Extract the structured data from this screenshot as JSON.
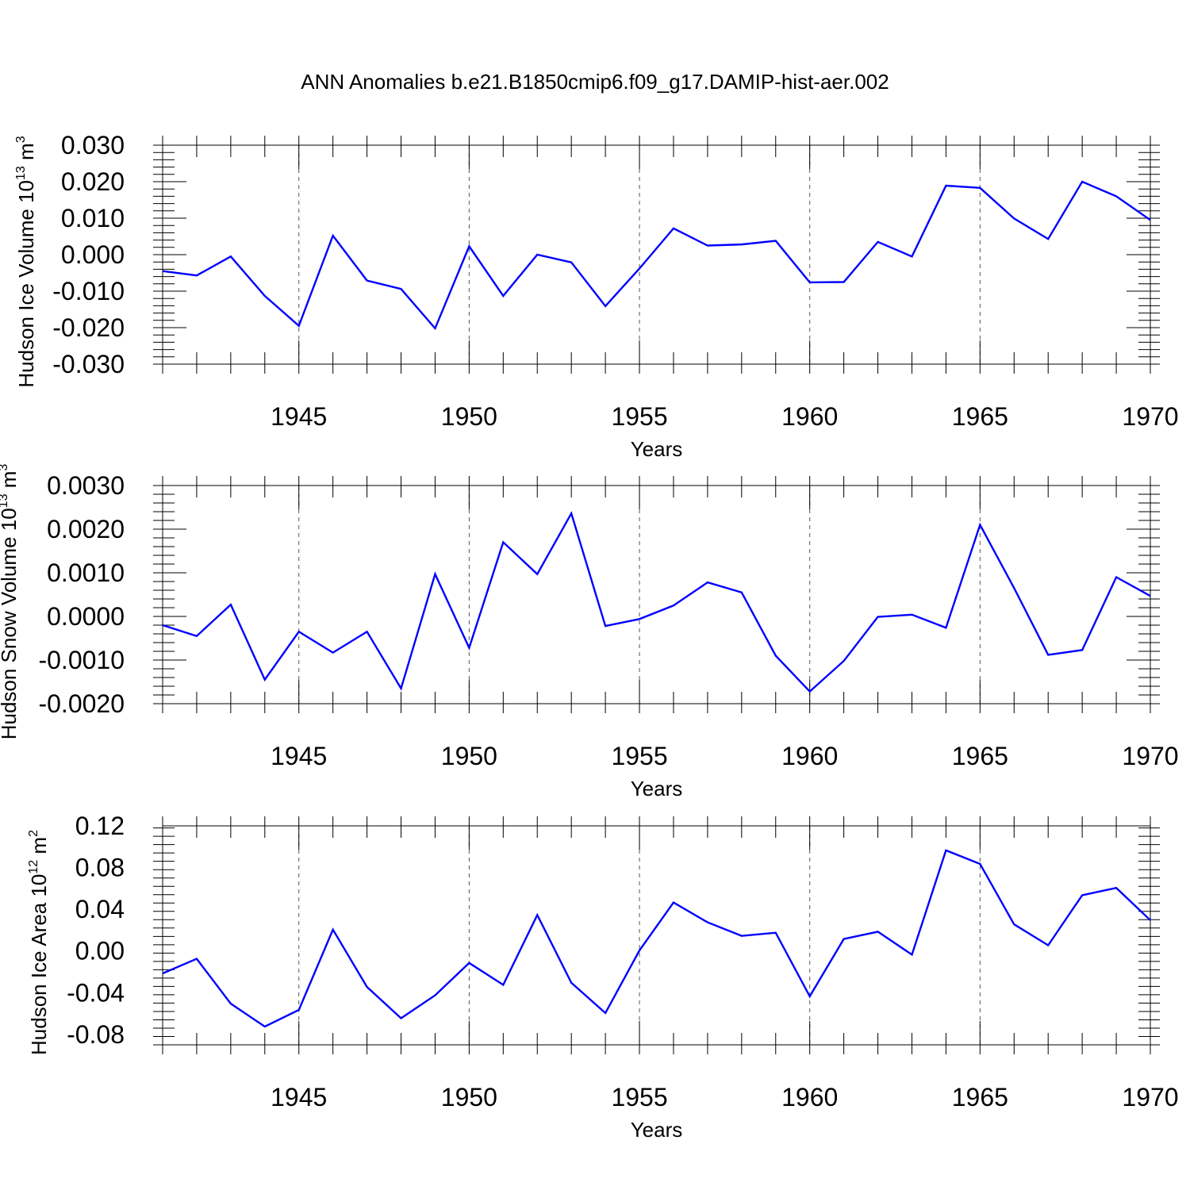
{
  "title": "ANN Anomalies b.e21.B1850cmip6.f09_g17.DAMIP-hist-aer.002",
  "line_color": "#0000ff",
  "chart_data": [
    {
      "type": "line",
      "ylabel_text": "Hudson Ice Volume 10",
      "ylabel_exp": "13",
      "ylabel_unit": " m",
      "ylabel_unit_exp": "3",
      "xlabel": "Years",
      "xlim": [
        1941,
        1970
      ],
      "ylim": [
        -0.03,
        0.03
      ],
      "yticks": [
        "-0.030",
        "-0.020",
        "-0.010",
        "0.000",
        "0.010",
        "0.020",
        "0.030"
      ],
      "ytick_values": [
        -0.03,
        -0.02,
        -0.01,
        0.0,
        0.01,
        0.02,
        0.03
      ],
      "xticks": [
        1945,
        1950,
        1955,
        1960,
        1965,
        1970
      ],
      "x": [
        1941,
        1942,
        1943,
        1944,
        1945,
        1946,
        1947,
        1948,
        1949,
        1950,
        1951,
        1952,
        1953,
        1954,
        1955,
        1956,
        1957,
        1958,
        1959,
        1960,
        1961,
        1962,
        1963,
        1964,
        1965,
        1966,
        1967,
        1968,
        1969,
        1970
      ],
      "values": [
        -0.0045,
        -0.0057,
        -0.0005,
        -0.0113,
        -0.0195,
        0.0052,
        -0.0071,
        -0.0094,
        -0.0202,
        0.0023,
        -0.0113,
        0.0,
        -0.0021,
        -0.0141,
        -0.0038,
        0.0072,
        0.0025,
        0.0028,
        0.0038,
        -0.0076,
        -0.0075,
        0.0035,
        -0.0005,
        0.0189,
        0.0183,
        0.0099,
        0.0043,
        0.02,
        0.016,
        0.0095
      ]
    },
    {
      "type": "line",
      "ylabel_text": "Hudson Snow Volume 10",
      "ylabel_exp": "13",
      "ylabel_unit": " m",
      "ylabel_unit_exp": "3",
      "xlabel": "Years",
      "xlim": [
        1941,
        1970
      ],
      "ylim": [
        -0.002,
        0.003
      ],
      "yticks": [
        "-0.0020",
        "-0.0010",
        "0.0000",
        "0.0010",
        "0.0020",
        "0.0030"
      ],
      "ytick_values": [
        -0.002,
        -0.001,
        0.0,
        0.001,
        0.002,
        0.003
      ],
      "xticks": [
        1945,
        1950,
        1955,
        1960,
        1965,
        1970
      ],
      "x": [
        1941,
        1942,
        1943,
        1944,
        1945,
        1946,
        1947,
        1948,
        1949,
        1950,
        1951,
        1952,
        1953,
        1954,
        1955,
        1956,
        1957,
        1958,
        1959,
        1960,
        1961,
        1962,
        1963,
        1964,
        1965,
        1966,
        1967,
        1968,
        1969,
        1970
      ],
      "values": [
        -0.0002,
        -0.00045,
        0.00027,
        -0.00145,
        -0.00035,
        -0.00083,
        -0.00035,
        -0.00165,
        0.00097,
        -0.00072,
        0.0017,
        0.00097,
        0.00236,
        -0.00022,
        -6e-05,
        0.00025,
        0.00078,
        0.00055,
        -0.0009,
        -0.00172,
        -0.00102,
        -1e-05,
        4e-05,
        -0.00026,
        0.0021,
        0.00065,
        -0.00088,
        -0.00077,
        0.0009,
        0.00047
      ]
    },
    {
      "type": "line",
      "ylabel_text": "Hudson Ice Area 10",
      "ylabel_exp": "12",
      "ylabel_unit": " m",
      "ylabel_unit_exp": "2",
      "xlabel": "Years",
      "xlim": [
        1941,
        1970
      ],
      "ylim": [
        -0.09,
        0.12
      ],
      "yticks": [
        "-0.08",
        "-0.04",
        "0.00",
        "0.04",
        "0.08",
        "0.12"
      ],
      "ytick_values": [
        -0.08,
        -0.04,
        0.0,
        0.04,
        0.08,
        0.12
      ],
      "xticks": [
        1945,
        1950,
        1955,
        1960,
        1965,
        1970
      ],
      "x": [
        1941,
        1942,
        1943,
        1944,
        1945,
        1946,
        1947,
        1948,
        1949,
        1950,
        1951,
        1952,
        1953,
        1954,
        1955,
        1956,
        1957,
        1958,
        1959,
        1960,
        1961,
        1962,
        1963,
        1964,
        1965,
        1966,
        1967,
        1968,
        1969,
        1970
      ],
      "values": [
        -0.0215,
        -0.0075,
        -0.0505,
        -0.0725,
        -0.0565,
        0.0205,
        -0.0345,
        -0.0645,
        -0.0425,
        -0.0115,
        -0.0325,
        0.0345,
        -0.0305,
        -0.0595,
        0.0005,
        0.0465,
        0.0275,
        0.0145,
        0.0175,
        -0.0435,
        0.0115,
        0.0185,
        -0.0035,
        0.0965,
        0.0835,
        0.0255,
        0.0055,
        0.0535,
        0.0605,
        0.0295
      ]
    }
  ]
}
